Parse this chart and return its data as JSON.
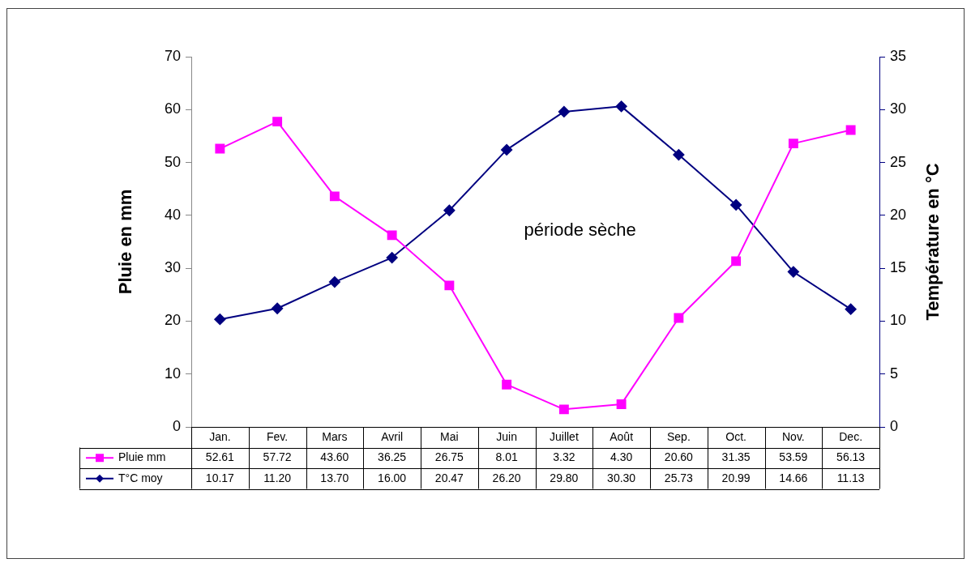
{
  "chart_data": {
    "type": "line",
    "ylabel": "Pluie en mm",
    "y2label": "Température en °C",
    "categories": [
      "Jan.",
      "Fev.",
      "Mars",
      "Avril",
      "Mai",
      "Juin",
      "Juillet",
      "Août",
      "Sep.",
      "Oct.",
      "Nov.",
      "Dec."
    ],
    "series": [
      {
        "name": "Pluie mm",
        "color": "#ff00ff",
        "marker": "square",
        "values": [
          52.61,
          57.72,
          43.6,
          36.25,
          26.75,
          8.01,
          3.32,
          4.3,
          20.6,
          31.35,
          53.59,
          56.13
        ],
        "value_labels": [
          "52.61",
          "57.72",
          "43.60",
          "36.25",
          "26.75",
          "8.01",
          "3.32",
          "4.30",
          "20.60",
          "31.35",
          "53.59",
          "56.13"
        ]
      },
      {
        "name": "T°C moy",
        "color": "#000080",
        "marker": "diamond",
        "axis": "y2",
        "values": [
          10.17,
          11.2,
          13.7,
          16,
          20.47,
          26.2,
          29.8,
          30.3,
          25.73,
          20.99,
          14.66,
          11.13
        ],
        "value_labels": [
          "10.17",
          "11.20",
          "13.70",
          "16.00",
          "20.47",
          "26.20",
          "29.80",
          "30.30",
          "25.73",
          "20.99",
          "14.66",
          "11.13"
        ]
      }
    ],
    "ylim": [
      0,
      70
    ],
    "yticks": [
      0,
      10,
      20,
      30,
      40,
      50,
      60,
      70
    ],
    "y2lim": [
      0,
      35
    ],
    "y2ticks": [
      0,
      5,
      10,
      15,
      20,
      25,
      30,
      35
    ],
    "annotations": [
      "période sèche"
    ],
    "legend": "bottom",
    "grid": false
  }
}
